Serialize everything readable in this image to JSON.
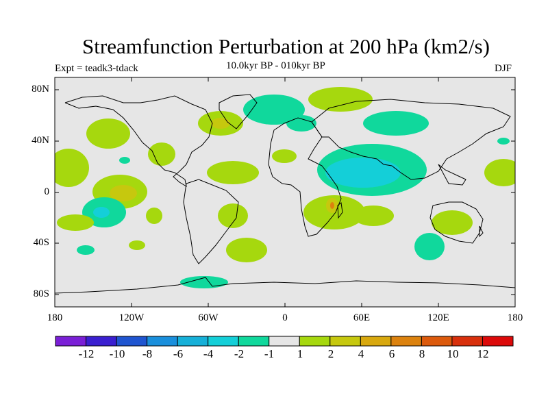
{
  "title": "Streamfunction Perturbation at 200 hPa (km2/s)",
  "experiment": "Expt = teadk3-tdack",
  "period": "10.0kyr BP - 010kyr BP",
  "season": "DJF",
  "lat_ticks": [
    "80N",
    "40N",
    "0",
    "40S",
    "80S"
  ],
  "lon_ticks": [
    "180",
    "120W",
    "60W",
    "0",
    "60E",
    "120E",
    "180"
  ],
  "colorbar": {
    "labels": [
      "-12",
      "-10",
      "-8",
      "-6",
      "-4",
      "-2",
      "-1",
      "1",
      "2",
      "4",
      "6",
      "8",
      "10",
      "12"
    ],
    "colors": [
      "#7a1fd6",
      "#3a1fd0",
      "#1f55d0",
      "#1a8fdc",
      "#16b0d8",
      "#14cfd8",
      "#10d89c",
      "#e6e6e6",
      "#a6d80e",
      "#c6c80e",
      "#d8a80e",
      "#dc820e",
      "#dc5a0c",
      "#d8300c",
      "#dc0a0a"
    ]
  },
  "colors": {
    "background": "#e6e6e6",
    "border": "#000000"
  }
}
